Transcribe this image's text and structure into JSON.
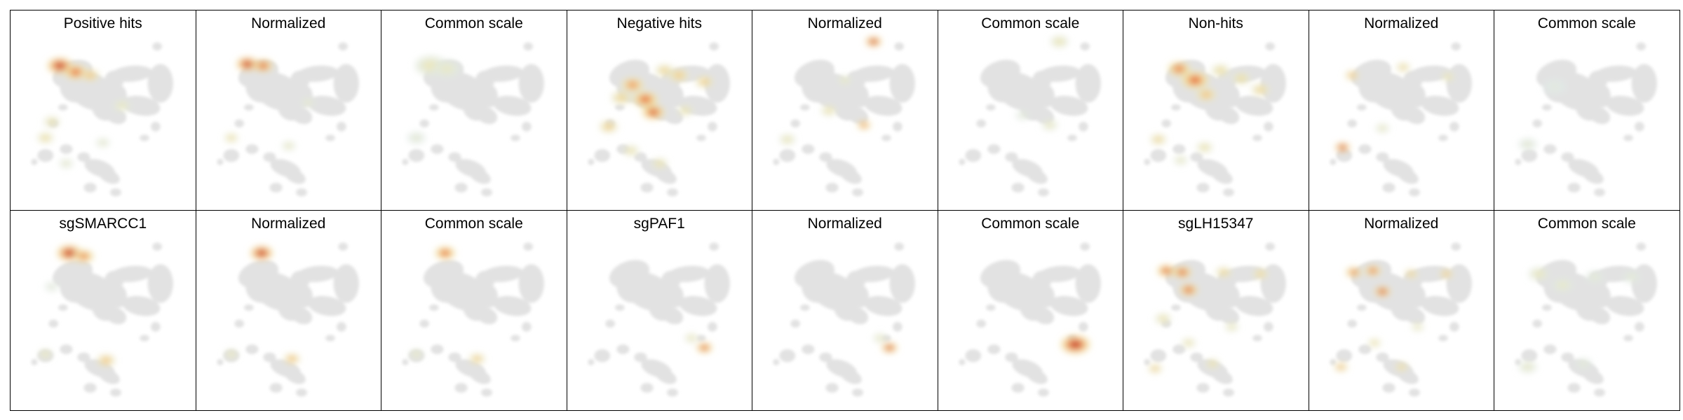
{
  "figure": {
    "panels": [
      {
        "title": "Positive hits",
        "hotspots": [
          [
            0.23,
            0.17,
            1.0,
            1.1
          ],
          [
            0.33,
            0.21,
            0.85,
            1.0
          ],
          [
            0.42,
            0.23,
            0.55,
            0.8
          ],
          [
            0.18,
            0.52,
            0.35,
            0.7
          ],
          [
            0.14,
            0.62,
            0.4,
            0.7
          ],
          [
            0.62,
            0.42,
            0.25,
            0.8
          ],
          [
            0.5,
            0.65,
            0.2,
            0.6
          ],
          [
            0.27,
            0.78,
            0.2,
            0.6
          ]
        ]
      },
      {
        "title": "Normalized",
        "hotspots": [
          [
            0.24,
            0.16,
            1.0,
            0.95
          ],
          [
            0.34,
            0.17,
            0.9,
            0.85
          ],
          [
            0.14,
            0.62,
            0.4,
            0.6
          ],
          [
            0.5,
            0.67,
            0.25,
            0.6
          ],
          [
            0.62,
            0.4,
            0.2,
            0.6
          ]
        ]
      },
      {
        "title": "Common scale",
        "hotspots": [
          [
            0.23,
            0.17,
            0.25,
            1.4
          ],
          [
            0.33,
            0.19,
            0.2,
            1.2
          ],
          [
            0.14,
            0.62,
            0.15,
            0.8
          ]
        ]
      },
      {
        "title": "Negative hits",
        "hotspots": [
          [
            0.33,
            0.29,
            0.7,
            1.0
          ],
          [
            0.41,
            0.38,
            0.85,
            1.1
          ],
          [
            0.46,
            0.46,
            0.9,
            1.0
          ],
          [
            0.26,
            0.37,
            0.45,
            0.9
          ],
          [
            0.53,
            0.2,
            0.45,
            0.8
          ],
          [
            0.62,
            0.23,
            0.5,
            0.9
          ],
          [
            0.78,
            0.27,
            0.5,
            0.8
          ],
          [
            0.18,
            0.55,
            0.5,
            0.8
          ],
          [
            0.32,
            0.7,
            0.35,
            0.7
          ],
          [
            0.5,
            0.78,
            0.35,
            0.7
          ],
          [
            0.66,
            0.45,
            0.35,
            0.7
          ]
        ]
      },
      {
        "title": "Normalized",
        "hotspots": [
          [
            0.68,
            0.02,
            1.0,
            0.7
          ],
          [
            0.62,
            0.54,
            0.75,
            0.6
          ],
          [
            0.4,
            0.45,
            0.35,
            0.7
          ],
          [
            0.14,
            0.63,
            0.3,
            0.7
          ],
          [
            0.5,
            0.26,
            0.25,
            0.6
          ]
        ]
      },
      {
        "title": "Common scale",
        "hotspots": [
          [
            0.68,
            0.02,
            0.3,
            0.8
          ],
          [
            0.62,
            0.54,
            0.25,
            0.7
          ],
          [
            0.45,
            0.48,
            0.15,
            0.6
          ]
        ]
      },
      {
        "title": "Non-hits",
        "hotspots": [
          [
            0.27,
            0.19,
            0.8,
            1.0
          ],
          [
            0.37,
            0.26,
            0.85,
            1.2
          ],
          [
            0.44,
            0.35,
            0.55,
            0.9
          ],
          [
            0.53,
            0.2,
            0.4,
            0.8
          ],
          [
            0.66,
            0.25,
            0.4,
            0.8
          ],
          [
            0.78,
            0.32,
            0.45,
            0.8
          ],
          [
            0.14,
            0.63,
            0.45,
            0.7
          ],
          [
            0.43,
            0.68,
            0.35,
            0.7
          ],
          [
            0.28,
            0.76,
            0.25,
            0.6
          ]
        ]
      },
      {
        "title": "Normalized",
        "hotspots": [
          [
            0.13,
            0.68,
            1.0,
            0.65
          ],
          [
            0.19,
            0.23,
            0.6,
            0.6
          ],
          [
            0.51,
            0.18,
            0.45,
            0.6
          ],
          [
            0.79,
            0.24,
            0.35,
            0.6
          ],
          [
            0.38,
            0.56,
            0.25,
            0.6
          ]
        ]
      },
      {
        "title": "Common scale",
        "hotspots": [
          [
            0.13,
            0.66,
            0.15,
            0.8
          ],
          [
            0.3,
            0.3,
            0.1,
            1.0
          ]
        ]
      },
      {
        "title": "sgSMARCC1",
        "hotspots": [
          [
            0.29,
            0.09,
            1.0,
            1.1
          ],
          [
            0.38,
            0.11,
            0.75,
            0.9
          ],
          [
            0.52,
            0.76,
            0.55,
            0.8
          ],
          [
            0.14,
            0.72,
            0.3,
            0.6
          ],
          [
            0.18,
            0.3,
            0.15,
            0.6
          ]
        ]
      },
      {
        "title": "Normalized",
        "hotspots": [
          [
            0.33,
            0.09,
            1.0,
            1.0
          ],
          [
            0.52,
            0.75,
            0.6,
            0.7
          ],
          [
            0.14,
            0.72,
            0.3,
            0.6
          ]
        ]
      },
      {
        "title": "Common scale",
        "hotspots": [
          [
            0.32,
            0.09,
            0.85,
            0.9
          ],
          [
            0.52,
            0.75,
            0.5,
            0.7
          ],
          [
            0.14,
            0.72,
            0.25,
            0.6
          ]
        ]
      },
      {
        "title": "sgPAF1",
        "hotspots": [
          [
            0.78,
            0.68,
            0.9,
            0.7
          ],
          [
            0.7,
            0.62,
            0.3,
            0.6
          ]
        ]
      },
      {
        "title": "Normalized",
        "hotspots": [
          [
            0.78,
            0.68,
            0.95,
            0.7
          ],
          [
            0.72,
            0.62,
            0.25,
            0.6
          ]
        ]
      },
      {
        "title": "Common scale",
        "hotspots": [
          [
            0.78,
            0.66,
            1.0,
            1.3
          ]
        ]
      },
      {
        "title": "sgLH15347",
        "hotspots": [
          [
            0.19,
            0.2,
            0.9,
            0.8
          ],
          [
            0.29,
            0.21,
            0.9,
            0.8
          ],
          [
            0.33,
            0.32,
            0.9,
            0.8
          ],
          [
            0.55,
            0.21,
            0.45,
            0.7
          ],
          [
            0.78,
            0.22,
            0.45,
            0.7
          ],
          [
            0.17,
            0.5,
            0.35,
            0.7
          ],
          [
            0.33,
            0.65,
            0.35,
            0.6
          ],
          [
            0.48,
            0.78,
            0.4,
            0.6
          ],
          [
            0.12,
            0.81,
            0.5,
            0.6
          ],
          [
            0.6,
            0.55,
            0.3,
            0.6
          ]
        ]
      },
      {
        "title": "Normalized",
        "hotspots": [
          [
            0.2,
            0.21,
            0.8,
            0.7
          ],
          [
            0.32,
            0.2,
            0.85,
            0.7
          ],
          [
            0.38,
            0.33,
            0.95,
            0.7
          ],
          [
            0.56,
            0.22,
            0.5,
            0.6
          ],
          [
            0.78,
            0.22,
            0.55,
            0.6
          ],
          [
            0.12,
            0.8,
            0.6,
            0.6
          ],
          [
            0.33,
            0.65,
            0.4,
            0.55
          ],
          [
            0.5,
            0.8,
            0.45,
            0.6
          ],
          [
            0.6,
            0.55,
            0.3,
            0.55
          ]
        ]
      },
      {
        "title": "Common scale",
        "hotspots": [
          [
            0.2,
            0.22,
            0.25,
            0.9
          ],
          [
            0.35,
            0.29,
            0.2,
            0.9
          ],
          [
            0.55,
            0.24,
            0.15,
            0.8
          ],
          [
            0.78,
            0.24,
            0.15,
            0.8
          ],
          [
            0.13,
            0.8,
            0.2,
            0.8
          ],
          [
            0.48,
            0.78,
            0.15,
            0.7
          ]
        ]
      }
    ]
  }
}
